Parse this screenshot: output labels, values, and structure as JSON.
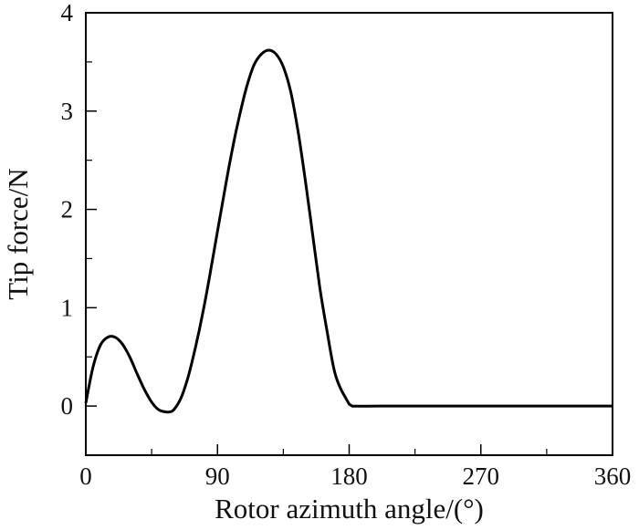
{
  "chart_data": {
    "type": "line",
    "xlabel": "Rotor azimuth angle/(°)",
    "ylabel": "Tip force/N",
    "xlim": [
      0,
      360
    ],
    "ylim": [
      -0.5,
      4
    ],
    "x_ticks": [
      0,
      90,
      180,
      270,
      360
    ],
    "x_tick_labels": [
      "0",
      "90",
      "180",
      "270",
      "360"
    ],
    "x_minor_ticks": [
      45,
      135,
      225,
      315
    ],
    "y_ticks": [
      0,
      1,
      2,
      3,
      4
    ],
    "y_tick_labels": [
      "0",
      "1",
      "2",
      "3",
      "4"
    ],
    "y_minor_ticks": [
      -0.5,
      0.5,
      1.5,
      2.5,
      3.5
    ],
    "grid": false,
    "legend": "none",
    "line_color": "#000000",
    "series": [
      {
        "x": [
          0,
          5,
          10,
          15,
          20,
          25,
          30,
          35,
          40,
          45,
          50,
          55,
          57,
          60,
          65,
          70,
          75,
          80,
          85,
          90,
          95,
          100,
          105,
          110,
          115,
          120,
          125,
          130,
          135,
          140,
          145,
          150,
          155,
          160,
          165,
          170,
          175,
          180,
          182,
          200,
          250,
          300,
          360
        ],
        "y": [
          0.03,
          0.4,
          0.62,
          0.7,
          0.7,
          0.63,
          0.5,
          0.33,
          0.17,
          0.04,
          -0.04,
          -0.06,
          -0.06,
          -0.04,
          0.08,
          0.3,
          0.6,
          0.95,
          1.35,
          1.78,
          2.2,
          2.6,
          2.95,
          3.25,
          3.47,
          3.58,
          3.62,
          3.58,
          3.45,
          3.2,
          2.8,
          2.3,
          1.75,
          1.2,
          0.75,
          0.35,
          0.15,
          0.02,
          0,
          0,
          0,
          0,
          0
        ]
      }
    ]
  }
}
